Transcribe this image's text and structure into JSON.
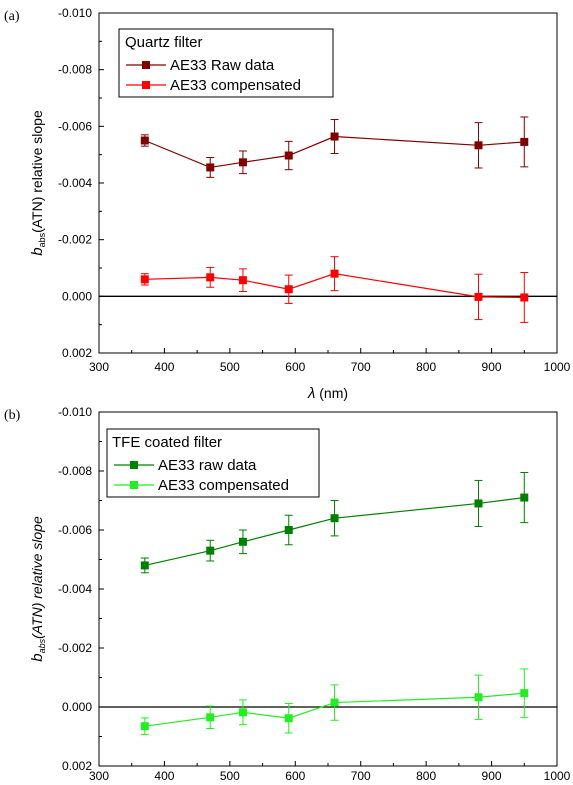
{
  "chart_data": [
    {
      "type": "line",
      "panel_label": "(a)",
      "legend_title": "Quartz filter",
      "x": [
        370,
        470,
        520,
        590,
        660,
        880,
        950
      ],
      "series": [
        {
          "name": "AE33 Raw data",
          "color": "#800000",
          "values": [
            -0.0055,
            -0.00455,
            -0.00473,
            -0.00497,
            -0.00564,
            -0.00533,
            -0.00545
          ],
          "errors": [
            0.0002,
            0.00035,
            0.0004,
            0.0005,
            0.0006,
            0.0008,
            0.00088
          ]
        },
        {
          "name": "AE33 compensated",
          "color": "#ff0000",
          "values": [
            -0.0006,
            -0.00067,
            -0.00057,
            -0.00025,
            -0.0008,
            2e-05,
            4e-05
          ],
          "errors": [
            0.0002,
            0.00035,
            0.0004,
            0.0005,
            0.0006,
            0.0008,
            0.00088
          ]
        }
      ],
      "xlim": [
        300,
        1000
      ],
      "ylim": [
        0.002,
        -0.01
      ],
      "x_ticks": [
        "300",
        "400",
        "500",
        "600",
        "700",
        "800",
        "900",
        "1000"
      ],
      "y_ticks": [
        "-0.010",
        "-0.008",
        "-0.006",
        "-0.004",
        "-0.002",
        "0.000",
        "0.002"
      ],
      "ylabel": {
        "main": "b",
        "sub": "abs",
        "rest": "(ATN) relative slope"
      },
      "xlabel": {
        "symbol": "λ",
        "unit": " (nm)"
      },
      "zero_line": true,
      "grid": false,
      "legend_position": "top-left"
    },
    {
      "type": "line",
      "panel_label": "(b)",
      "legend_title": "TFE coated filter",
      "x": [
        370,
        470,
        520,
        590,
        660,
        880,
        950
      ],
      "series": [
        {
          "name": "AE33 raw data",
          "color": "#008000",
          "values": [
            -0.0048,
            -0.0053,
            -0.0056,
            -0.006,
            -0.0064,
            -0.0069,
            -0.0071
          ],
          "errors": [
            0.00025,
            0.00035,
            0.0004,
            0.0005,
            0.0006,
            0.00078,
            0.00085
          ]
        },
        {
          "name": "AE33 compensated",
          "color": "#22ee22",
          "values": [
            0.00065,
            0.00035,
            0.00018,
            0.00038,
            -0.00015,
            -0.00033,
            -0.00047
          ],
          "errors": [
            0.00028,
            0.00038,
            0.00042,
            0.0005,
            0.0006,
            0.00075,
            0.00082
          ]
        }
      ],
      "xlim": [
        300,
        1000
      ],
      "ylim": [
        0.002,
        -0.01
      ],
      "x_ticks": [
        "300",
        "400",
        "500",
        "600",
        "700",
        "800",
        "900",
        "1000"
      ],
      "y_ticks": [
        "-0.010",
        "-0.008",
        "-0.006",
        "-0.004",
        "-0.002",
        "0.000",
        "0.002"
      ],
      "ylabel": {
        "main": "b",
        "sub": "abs",
        "rest": "(ATN) relative slope"
      },
      "zero_line": true,
      "grid": false,
      "legend_position": "top-left"
    }
  ]
}
